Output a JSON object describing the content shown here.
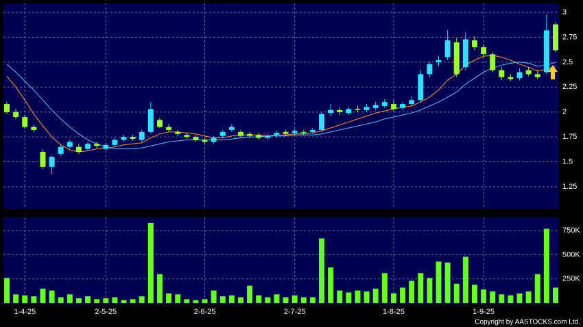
{
  "chart_data": [
    {
      "type": "candlestick",
      "categories": [
        null,
        null,
        "1-4-25",
        null,
        null,
        null,
        null,
        null,
        null,
        null,
        null,
        "2-5-25",
        null,
        null,
        null,
        null,
        null,
        null,
        null,
        null,
        null,
        null,
        "2-6-25",
        null,
        null,
        null,
        null,
        null,
        null,
        null,
        null,
        null,
        "2-7-25",
        null,
        null,
        null,
        null,
        null,
        null,
        null,
        null,
        null,
        null,
        "1-8-25",
        null,
        null,
        null,
        null,
        null,
        null,
        null,
        null,
        null,
        "1-9-25",
        null,
        null,
        null,
        null,
        null,
        null,
        null,
        null
      ],
      "open": [
        2.08,
        2.0,
        1.95,
        1.85,
        1.6,
        1.45,
        1.58,
        1.65,
        1.65,
        1.63,
        1.68,
        1.63,
        1.67,
        1.72,
        1.75,
        1.72,
        1.8,
        1.92,
        1.85,
        1.8,
        1.77,
        1.75,
        1.72,
        1.7,
        1.76,
        1.82,
        1.8,
        1.78,
        1.77,
        1.74,
        1.77,
        1.8,
        1.79,
        1.8,
        1.8,
        1.82,
        1.99,
        2.02,
        1.99,
        2.03,
        2.02,
        2.04,
        2.06,
        2.08,
        2.04,
        2.08,
        2.12,
        2.38,
        2.5,
        2.55,
        2.7,
        2.45,
        2.72,
        2.65,
        2.58,
        2.42,
        2.35,
        2.34,
        2.42,
        2.38,
        2.4,
        2.88
      ],
      "high": [
        2.1,
        2.03,
        1.97,
        1.87,
        1.62,
        1.56,
        1.67,
        1.72,
        1.68,
        1.7,
        1.7,
        1.69,
        1.74,
        1.77,
        1.77,
        1.82,
        2.1,
        1.94,
        1.88,
        1.82,
        1.79,
        1.77,
        1.74,
        1.76,
        1.82,
        1.88,
        1.82,
        1.8,
        1.79,
        1.78,
        1.81,
        1.82,
        1.83,
        1.82,
        1.84,
        2.0,
        2.08,
        2.05,
        2.05,
        2.06,
        2.08,
        2.1,
        2.13,
        2.12,
        2.1,
        2.16,
        2.42,
        2.5,
        2.56,
        2.82,
        2.74,
        2.8,
        2.76,
        2.68,
        2.6,
        2.45,
        2.38,
        2.44,
        2.45,
        2.42,
        2.98,
        2.9
      ],
      "low": [
        1.98,
        1.93,
        1.83,
        1.8,
        1.43,
        1.38,
        1.56,
        1.63,
        1.58,
        1.61,
        1.64,
        1.61,
        1.65,
        1.7,
        1.71,
        1.7,
        1.78,
        1.84,
        1.8,
        1.76,
        1.73,
        1.7,
        1.68,
        1.68,
        1.74,
        1.8,
        1.74,
        1.74,
        1.72,
        1.72,
        1.75,
        1.76,
        1.77,
        1.77,
        1.78,
        1.8,
        1.96,
        1.97,
        1.97,
        2.0,
        2.0,
        2.02,
        2.04,
        2.01,
        2.02,
        2.06,
        2.1,
        2.35,
        2.46,
        2.52,
        2.35,
        2.42,
        2.62,
        2.55,
        2.4,
        2.32,
        2.31,
        2.32,
        2.36,
        2.33,
        2.38,
        2.6
      ],
      "close": [
        2.0,
        1.95,
        1.85,
        1.82,
        1.45,
        1.55,
        1.65,
        1.7,
        1.6,
        1.68,
        1.66,
        1.67,
        1.72,
        1.75,
        1.73,
        1.8,
        2.03,
        1.85,
        1.82,
        1.78,
        1.75,
        1.72,
        1.7,
        1.74,
        1.8,
        1.85,
        1.76,
        1.76,
        1.74,
        1.76,
        1.79,
        1.78,
        1.81,
        1.79,
        1.82,
        1.98,
        2.02,
        2.0,
        2.03,
        2.02,
        2.05,
        2.07,
        2.1,
        2.03,
        2.08,
        2.12,
        2.38,
        2.48,
        2.52,
        2.72,
        2.38,
        2.73,
        2.65,
        2.58,
        2.42,
        2.35,
        2.33,
        2.4,
        2.38,
        2.35,
        2.82,
        2.62
      ],
      "up_color": "#33ddff",
      "down_color": "#99ff33",
      "series": [
        {
          "color": "#ff9933",
          "values": [
            2.36,
            2.25,
            2.12,
            1.98,
            1.86,
            1.75,
            1.67,
            1.62,
            1.6,
            1.61,
            1.63,
            1.64,
            1.65,
            1.67,
            1.68,
            1.69,
            1.74,
            1.78,
            1.8,
            1.8,
            1.79,
            1.78,
            1.76,
            1.74,
            1.74,
            1.76,
            1.77,
            1.77,
            1.77,
            1.76,
            1.77,
            1.77,
            1.78,
            1.78,
            1.79,
            1.81,
            1.84,
            1.87,
            1.9,
            1.93,
            1.96,
            1.99,
            2.01,
            2.03,
            2.05,
            2.06,
            2.1,
            2.15,
            2.22,
            2.32,
            2.38,
            2.47,
            2.52,
            2.56,
            2.57,
            2.55,
            2.52,
            2.48,
            2.45,
            2.41,
            2.43,
            2.46
          ]
        },
        {
          "color": "#66bbff",
          "values": [
            2.48,
            2.4,
            2.31,
            2.22,
            2.12,
            2.02,
            1.93,
            1.85,
            1.78,
            1.72,
            1.68,
            1.65,
            1.63,
            1.63,
            1.63,
            1.64,
            1.66,
            1.68,
            1.7,
            1.71,
            1.72,
            1.72,
            1.72,
            1.72,
            1.72,
            1.73,
            1.74,
            1.75,
            1.75,
            1.76,
            1.76,
            1.76,
            1.77,
            1.77,
            1.77,
            1.78,
            1.8,
            1.82,
            1.84,
            1.86,
            1.88,
            1.9,
            1.93,
            1.95,
            1.97,
            1.99,
            2.02,
            2.06,
            2.1,
            2.15,
            2.2,
            2.28,
            2.34,
            2.4,
            2.44,
            2.47,
            2.49,
            2.5,
            2.49,
            2.46,
            2.47,
            2.5
          ]
        }
      ],
      "ylim": [
        1.03,
        3.09
      ],
      "yticks": [
        1.25,
        1.5,
        1.75,
        2,
        2.25,
        2.5,
        2.75,
        3
      ],
      "grid": true
    },
    {
      "type": "bar",
      "color": "#66ff22",
      "values": [
        260000,
        90000,
        80000,
        70000,
        150000,
        130000,
        60000,
        90000,
        50000,
        70000,
        40000,
        50000,
        60000,
        30000,
        40000,
        70000,
        830000,
        300000,
        100000,
        90000,
        40000,
        30000,
        40000,
        130000,
        70000,
        80000,
        60000,
        180000,
        80000,
        60000,
        90000,
        60000,
        80000,
        60000,
        60000,
        670000,
        370000,
        130000,
        110000,
        130000,
        120000,
        150000,
        310000,
        100000,
        160000,
        230000,
        310000,
        260000,
        430000,
        420000,
        200000,
        480000,
        190000,
        140000,
        120000,
        90000,
        80000,
        100000,
        120000,
        300000,
        770000,
        160000
      ],
      "ylim": [
        0,
        886000
      ],
      "yticks": [
        {
          "value": 250000,
          "label": "250K"
        },
        {
          "value": 500000,
          "label": "500K"
        },
        {
          "value": 750000,
          "label": "750K"
        }
      ],
      "grid": true
    }
  ],
  "copyright": "Copyright by AASTOCKS.com Ltd."
}
